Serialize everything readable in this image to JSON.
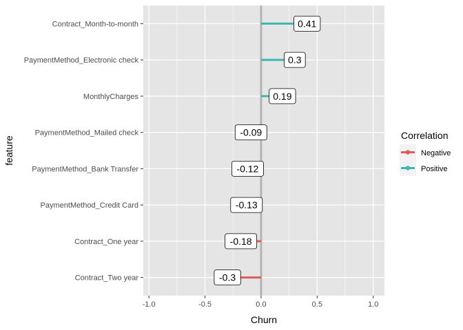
{
  "chart_data": {
    "type": "lollipop",
    "title": "",
    "xlabel": "Churn",
    "ylabel": "feature",
    "xlim": [
      -1.05,
      1.1
    ],
    "x_ticks": [
      -1.0,
      -0.5,
      0.0,
      0.5,
      1.0
    ],
    "x_tick_labels": [
      "-1.0",
      "-0.5",
      "0.0",
      "0.5",
      "1.0"
    ],
    "grid": true,
    "baseline": 0,
    "legend": {
      "title": "Correlation",
      "placement": "right",
      "entries": [
        {
          "name": "Negative",
          "color": "#E05A5C"
        },
        {
          "name": "Positive",
          "color": "#3DB6B0"
        }
      ]
    },
    "points": [
      {
        "feature": "Contract_Month-to-month",
        "value": 0.41,
        "label": "0.41",
        "group": "Positive"
      },
      {
        "feature": "PaymentMethod_Electronic check",
        "value": 0.3,
        "label": "0.3",
        "group": "Positive"
      },
      {
        "feature": "MonthlyCharges",
        "value": 0.19,
        "label": "0.19",
        "group": "Positive"
      },
      {
        "feature": "PaymentMethod_Mailed check",
        "value": -0.09,
        "label": "-0.09",
        "group": "Negative"
      },
      {
        "feature": "PaymentMethod_Bank Transfer",
        "value": -0.12,
        "label": "-0.12",
        "group": "Negative"
      },
      {
        "feature": "PaymentMethod_Credit Card",
        "value": -0.13,
        "label": "-0.13",
        "group": "Negative"
      },
      {
        "feature": "Contract_One year",
        "value": -0.18,
        "label": "-0.18",
        "group": "Negative"
      },
      {
        "feature": "Contract_Two year",
        "value": -0.3,
        "label": "-0.3",
        "group": "Negative"
      }
    ]
  },
  "colors": {
    "panel": "#E5E5E5",
    "grid_major": "#FFFFFF",
    "baseline": "#B3B3B3",
    "negative": "#E05A5C",
    "positive": "#3DB6B0"
  }
}
